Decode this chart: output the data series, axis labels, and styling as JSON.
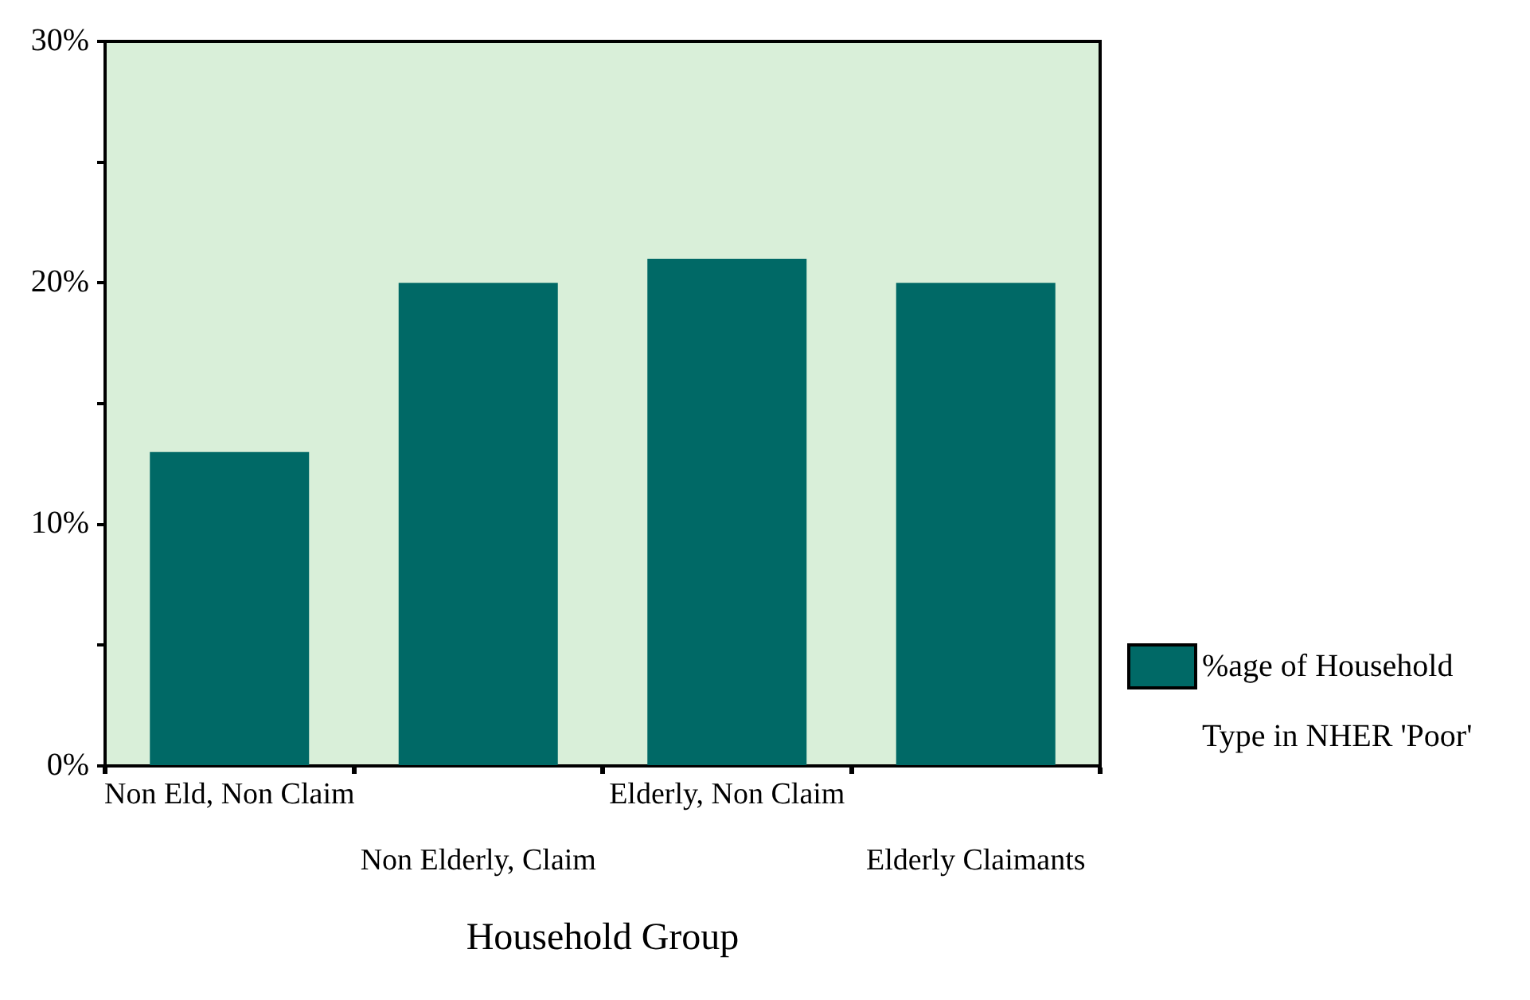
{
  "chart_data": {
    "type": "bar",
    "xlabel": "Household Group",
    "categories": [
      "Non Eld, Non Claim",
      "Non Elderly, Claim",
      "Elderly, Non Claim",
      "Elderly Claimants"
    ],
    "series": [
      {
        "name": "%age of Household Type in NHER 'Poor'",
        "color": "#006966",
        "values": [
          13,
          20,
          21,
          20
        ]
      }
    ],
    "ylim": [
      0,
      30
    ],
    "yticks": [
      {
        "value": 0,
        "label": "0%"
      },
      {
        "value": 5,
        "label": null
      },
      {
        "value": 10,
        "label": "10%"
      },
      {
        "value": 15,
        "label": null
      },
      {
        "value": 20,
        "label": "20%"
      },
      {
        "value": 25,
        "label": null
      },
      {
        "value": 30,
        "label": "30%"
      }
    ],
    "grid": false,
    "legend": "right"
  }
}
